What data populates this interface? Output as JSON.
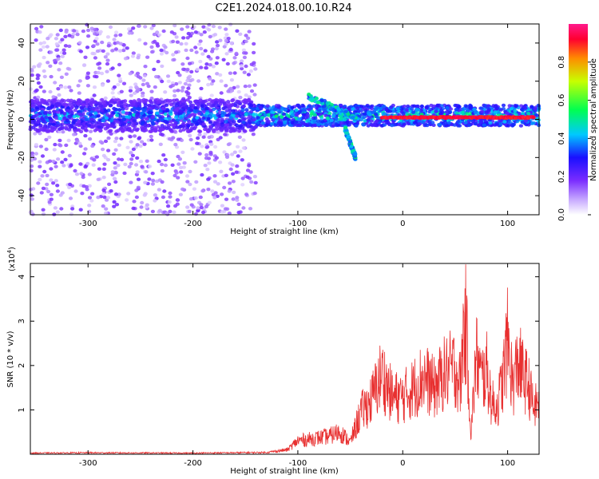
{
  "title": "C2E1.2024.018.00.10.R24",
  "chart_data": [
    {
      "type": "heatmap",
      "xlabel": "Height of straight line (km)",
      "ylabel": "Frequency (Hz)",
      "xlim": [
        -355,
        130
      ],
      "ylim": [
        -50,
        50
      ],
      "xticks": [
        -300,
        -200,
        -100,
        0,
        100
      ],
      "yticks": [
        -40,
        -20,
        0,
        20,
        40
      ],
      "colorbar": {
        "label": "Normalized spectral amplitude",
        "range": [
          0.0,
          1.0
        ],
        "ticks": [
          0.0,
          0.2,
          0.4,
          0.6,
          0.8
        ],
        "tick_labels": [
          "0.0",
          "0.2",
          "0.4",
          "0.6",
          "0.8"
        ],
        "colors": [
          "#ffffff",
          "#9a5cff",
          "#1a10ff",
          "#00c8ff",
          "#00ff50",
          "#c8ff00",
          "#ff8c00",
          "#ff0030",
          "#ff1a8c"
        ]
      },
      "features": [
        {
          "description_of": "main band",
          "x_range": [
            -355,
            130
          ],
          "freq_center": 2,
          "freq_halfwidth": 6
        },
        {
          "description_of": "broadband noise",
          "x_range": [
            -355,
            -140
          ],
          "freq_range": [
            -50,
            50
          ]
        },
        {
          "description_of": "upper branch",
          "x_range": [
            -90,
            -40
          ],
          "freq_from": 12,
          "freq_to": 0
        },
        {
          "description_of": "lower branch",
          "x_range": [
            -55,
            -45
          ],
          "freq_from": -5,
          "freq_to": -20
        },
        {
          "description_of": "peak line",
          "x_range": [
            -20,
            125
          ],
          "freq": 1
        }
      ],
      "grid": false
    },
    {
      "type": "line",
      "xlabel": "Height of straight line (km)",
      "ylabel": "SNR (10 * v/v)",
      "scale_note": "(x10",
      "scale_exponent": "4",
      "scale_suffix": ")",
      "xlim": [
        -355,
        130
      ],
      "ylim": [
        0,
        4.3
      ],
      "xticks": [
        -300,
        -200,
        -100,
        0,
        100
      ],
      "yticks": [
        1,
        2,
        3,
        4
      ],
      "color": "#e83030",
      "envelope": {
        "x": [
          -355,
          -300,
          -200,
          -130,
          -110,
          -100,
          -90,
          -80,
          -70,
          -60,
          -50,
          -40,
          -30,
          -20,
          -10,
          0,
          10,
          20,
          30,
          40,
          50,
          55,
          58,
          60,
          62,
          65,
          70,
          75,
          80,
          85,
          90,
          95,
          100,
          105,
          110,
          115,
          120,
          125,
          130
        ],
        "y": [
          0.04,
          0.05,
          0.04,
          0.06,
          0.15,
          0.45,
          0.5,
          0.55,
          0.6,
          0.75,
          0.4,
          1.4,
          1.8,
          2.7,
          1.9,
          1.9,
          2.2,
          2.6,
          2.2,
          2.7,
          2.9,
          2.3,
          4.2,
          4.3,
          3.2,
          0.6,
          3.3,
          2.5,
          2.8,
          1.7,
          1.6,
          2.4,
          3.8,
          2.3,
          3.1,
          2.6,
          2.3,
          1.5,
          1.8
        ]
      },
      "grid": false
    }
  ]
}
